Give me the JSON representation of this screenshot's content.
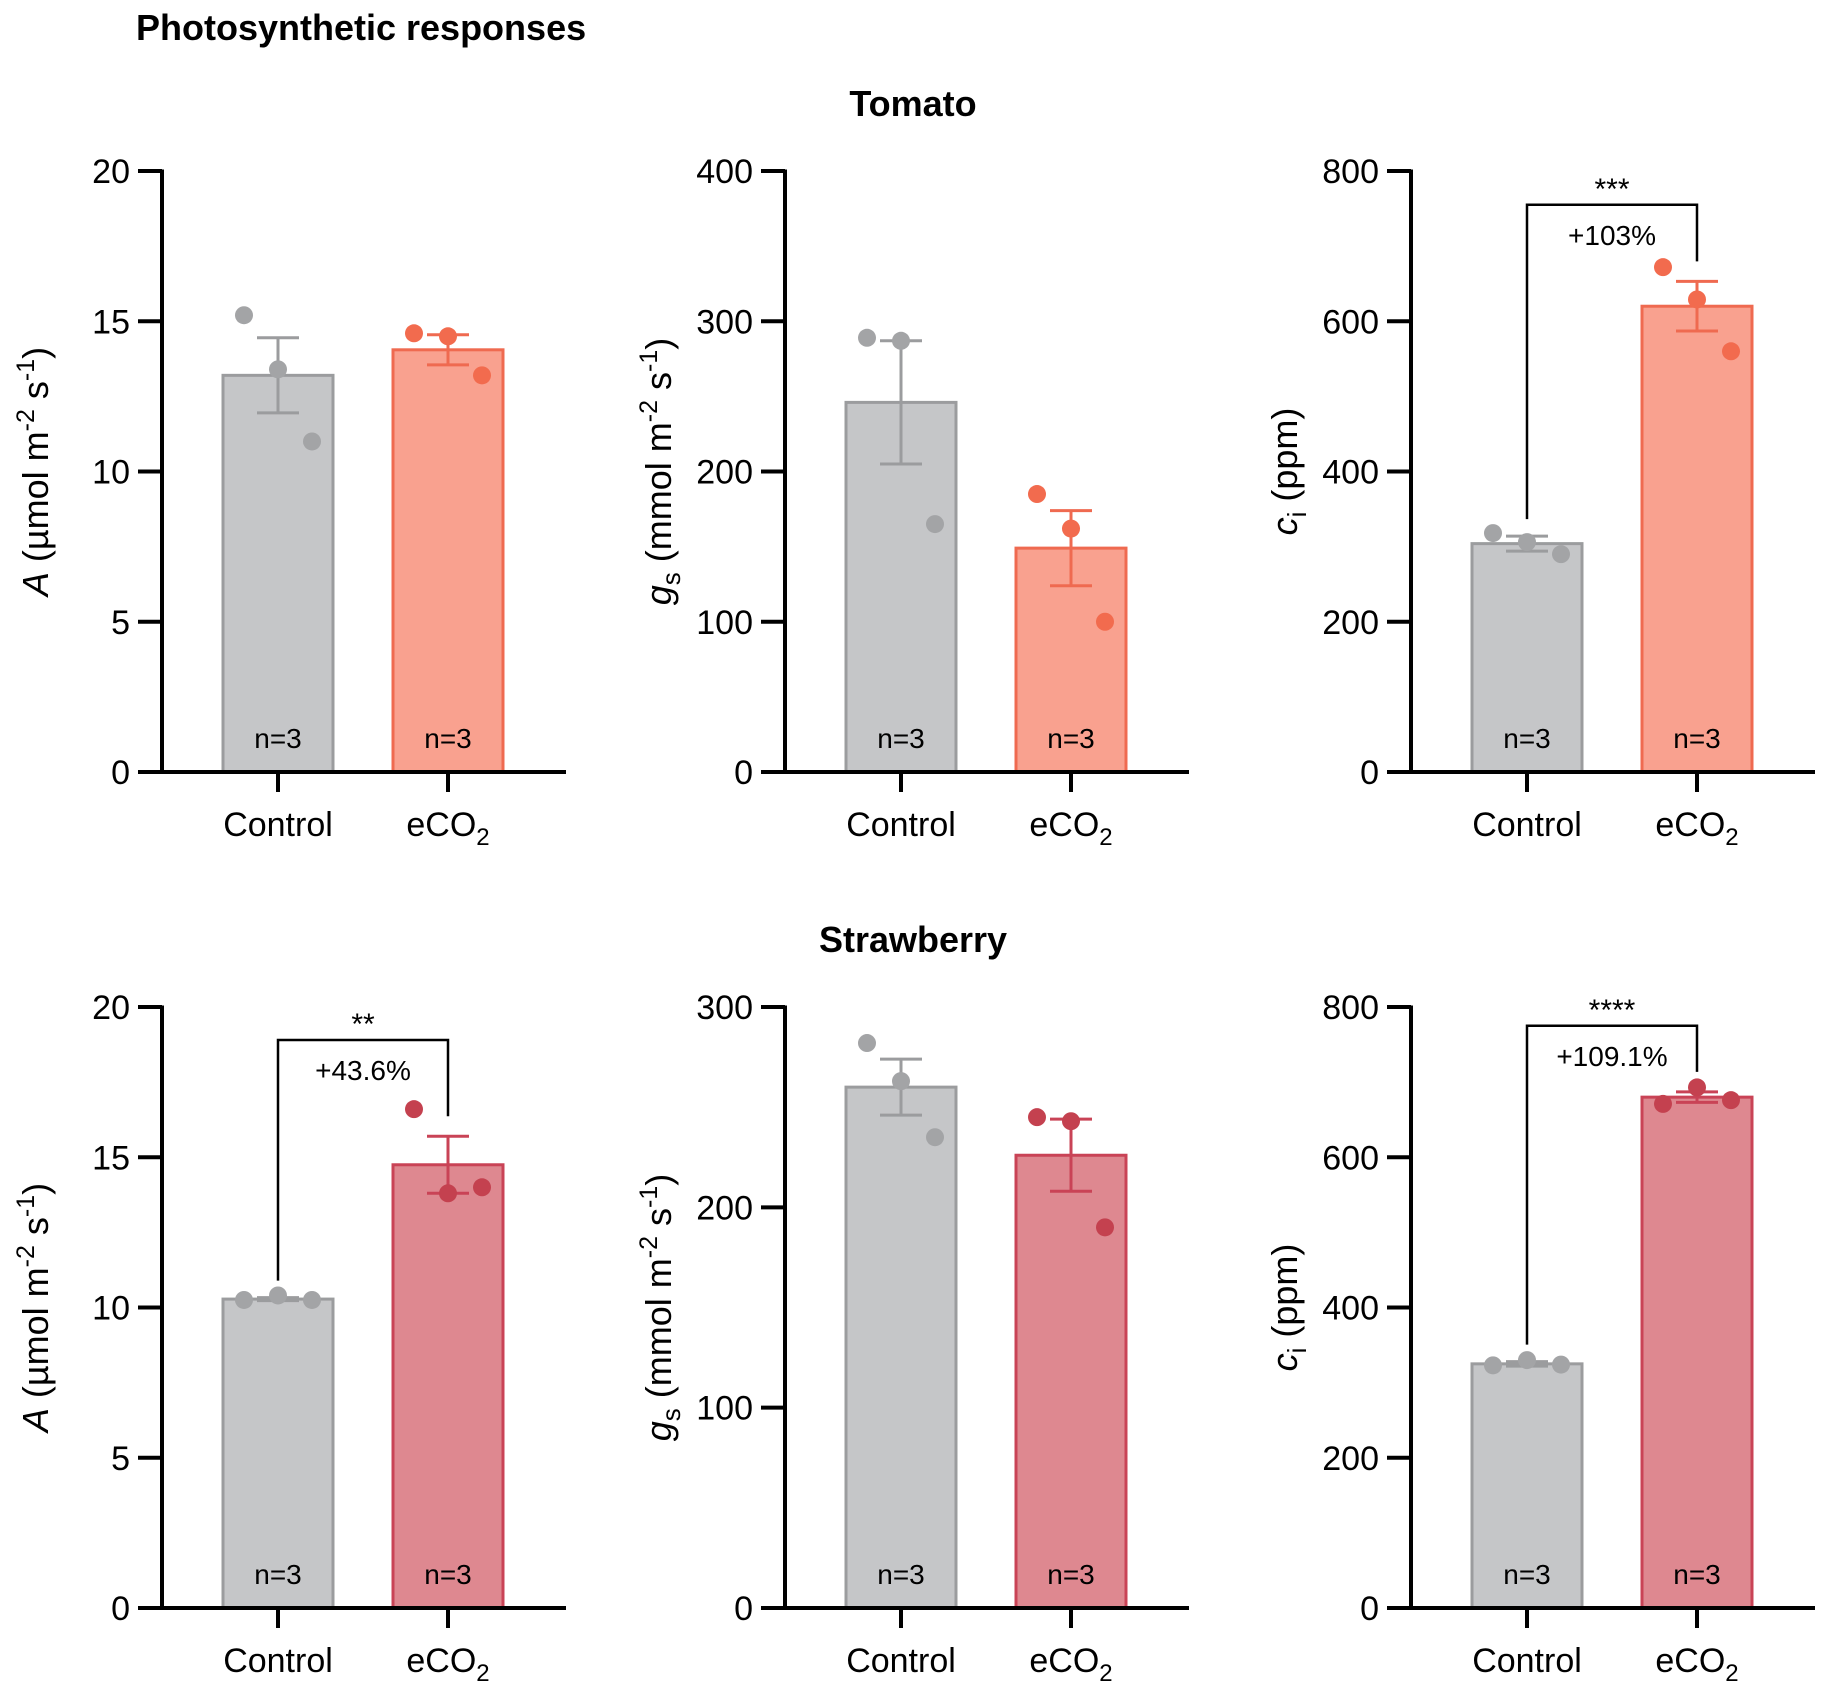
{
  "figure_title": "Photosynthetic responses",
  "row_titles": [
    "Tomato",
    "Strawberry"
  ],
  "colors": {
    "control_fill": "#c5c6c8",
    "control_stroke": "#9b9c9e",
    "control_point": "#a3a4a6",
    "tomato_fill": "#f9a18f",
    "tomato_stroke": "#ef6a50",
    "tomato_point": "#f26b4e",
    "strawberry_fill": "#de8890",
    "strawberry_stroke": "#c94356",
    "strawberry_point": "#c4414f",
    "axis": "#000000"
  },
  "chart_data": [
    {
      "id": "tomato-A",
      "row": "Tomato",
      "type": "bar",
      "ylabel": {
        "symbol": "A",
        "sub": "",
        "text": " (µmol m",
        "sup1": "-2",
        "mid": " s",
        "sup2": "-1",
        "end": ")"
      },
      "ylim": [
        0,
        20
      ],
      "ticks": [
        0,
        5,
        10,
        15,
        20
      ],
      "categories": [
        {
          "main": "Control",
          "sub": ""
        },
        {
          "main": "eCO",
          "sub": "2"
        }
      ],
      "means": [
        13.2,
        14.05
      ],
      "sem": [
        1.25,
        0.5
      ],
      "points": [
        [
          15.2,
          13.4,
          11.0
        ],
        [
          14.6,
          14.5,
          13.2
        ]
      ],
      "n_labels": [
        "n=3",
        "n=3"
      ],
      "significance": null
    },
    {
      "id": "tomato-gs",
      "row": "Tomato",
      "type": "bar",
      "ylabel": {
        "symbol": "g",
        "sub": "s",
        "text": " (mmol m",
        "sup1": "-2",
        "mid": " s",
        "sup2": "-1",
        "end": ")"
      },
      "ylim": [
        0,
        400
      ],
      "ticks": [
        0,
        100,
        200,
        300,
        400
      ],
      "categories": [
        {
          "main": "Control",
          "sub": ""
        },
        {
          "main": "eCO",
          "sub": "2"
        }
      ],
      "means": [
        246,
        149
      ],
      "sem": [
        41,
        25
      ],
      "points": [
        [
          289,
          287,
          165
        ],
        [
          185,
          162,
          100
        ]
      ],
      "n_labels": [
        "n=3",
        "n=3"
      ],
      "significance": null
    },
    {
      "id": "tomato-ci",
      "row": "Tomato",
      "type": "bar",
      "ylabel": {
        "symbol": "c",
        "sub": "i",
        "text": " (ppm)",
        "sup1": "",
        "mid": "",
        "sup2": "",
        "end": ""
      },
      "ylim": [
        0,
        800
      ],
      "ticks": [
        0,
        200,
        400,
        600,
        800
      ],
      "categories": [
        {
          "main": "Control",
          "sub": ""
        },
        {
          "main": "eCO",
          "sub": "2"
        }
      ],
      "means": [
        304,
        620
      ],
      "sem": [
        10,
        33
      ],
      "points": [
        [
          318,
          306,
          290
        ],
        [
          672,
          629,
          560
        ]
      ],
      "n_labels": [
        "n=3",
        "n=3"
      ],
      "significance": {
        "stars": "***",
        "change": "+103%",
        "bracket_y": 755
      }
    },
    {
      "id": "strawberry-A",
      "row": "Strawberry",
      "type": "bar",
      "ylabel": {
        "symbol": "A",
        "sub": "",
        "text": " (µmol m",
        "sup1": "-2",
        "mid": " s",
        "sup2": "-1",
        "end": ")"
      },
      "ylim": [
        0,
        20
      ],
      "ticks": [
        0,
        5,
        10,
        15,
        20
      ],
      "categories": [
        {
          "main": "Control",
          "sub": ""
        },
        {
          "main": "eCO",
          "sub": "2"
        }
      ],
      "means": [
        10.28,
        14.75
      ],
      "sem": [
        0.05,
        0.95
      ],
      "points": [
        [
          10.25,
          10.4,
          10.25
        ],
        [
          16.6,
          13.8,
          14.0
        ]
      ],
      "n_labels": [
        "n=3",
        "n=3"
      ],
      "significance": {
        "stars": "**",
        "change": "+43.6%",
        "bracket_y": 18.9
      }
    },
    {
      "id": "strawberry-gs",
      "row": "Strawberry",
      "type": "bar",
      "ylabel": {
        "symbol": "g",
        "sub": "s",
        "text": " (mmol m",
        "sup1": "-2",
        "mid": " s",
        "sup2": "-1",
        "end": ")"
      },
      "ylim": [
        0,
        300
      ],
      "ticks": [
        0,
        100,
        200,
        300
      ],
      "categories": [
        {
          "main": "Control",
          "sub": ""
        },
        {
          "main": "eCO",
          "sub": "2"
        }
      ],
      "means": [
        260,
        226
      ],
      "sem": [
        14,
        18
      ],
      "points": [
        [
          282,
          263,
          235
        ],
        [
          245,
          243,
          190
        ]
      ],
      "n_labels": [
        "n=3",
        "n=3"
      ],
      "significance": null
    },
    {
      "id": "strawberry-ci",
      "row": "Strawberry",
      "type": "bar",
      "ylabel": {
        "symbol": "c",
        "sub": "i",
        "text": " (ppm)",
        "sup1": "",
        "mid": "",
        "sup2": "",
        "end": ""
      },
      "ylim": [
        0,
        800
      ],
      "ticks": [
        0,
        200,
        400,
        600,
        800
      ],
      "categories": [
        {
          "main": "Control",
          "sub": ""
        },
        {
          "main": "eCO",
          "sub": "2"
        }
      ],
      "means": [
        325,
        680
      ],
      "sem": [
        3,
        7
      ],
      "points": [
        [
          323,
          330,
          324
        ],
        [
          671,
          693,
          676
        ]
      ],
      "n_labels": [
        "n=3",
        "n=3"
      ],
      "significance": {
        "stars": "****",
        "change": "+109.1%",
        "bracket_y": 775
      }
    }
  ]
}
